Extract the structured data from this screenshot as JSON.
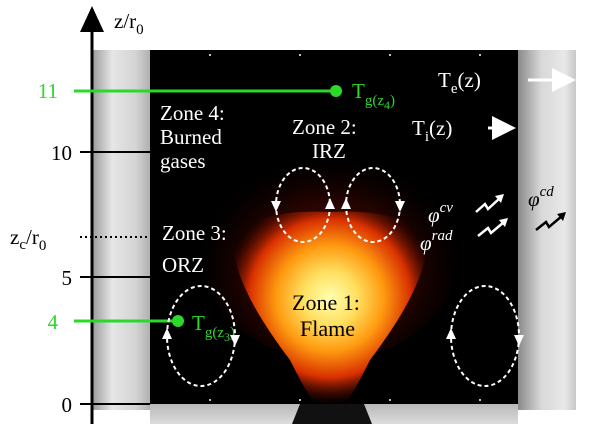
{
  "axis": {
    "label_main": "z/r",
    "label_sub": "0",
    "ticks": [
      {
        "value": "0",
        "color": "#000000"
      },
      {
        "value": "4",
        "color": "#2bd82b"
      },
      {
        "value": "5",
        "color": "#000000"
      },
      {
        "value": "10",
        "color": "#000000"
      },
      {
        "value": "11",
        "color": "#2bd82b"
      }
    ],
    "zc_main": "z",
    "zc_sub": "c",
    "zc_rest": "/r",
    "zc_sub2": "0"
  },
  "zones": {
    "zone1": {
      "line1": "Zone 1:",
      "line2": "Flame"
    },
    "zone2": {
      "line1": "Zone 2:",
      "line2": "IRZ"
    },
    "zone3": {
      "line1": "Zone 3:",
      "line2": "ORZ"
    },
    "zone4": {
      "line1": "Zone 4:",
      "line2": "Burned",
      "line3": "gases"
    }
  },
  "temperatures": {
    "tg4": {
      "main": "T",
      "sub": "g(z",
      "sub2": "4",
      "tail": ")"
    },
    "tg3": {
      "main": "T",
      "sub": "g(z",
      "sub2": "3",
      "tail": ")"
    },
    "te": {
      "main": "T",
      "sub": "e",
      "rest": "(z)"
    },
    "ti": {
      "main": "T",
      "sub": "i",
      "rest": "(z)"
    }
  },
  "fluxes": {
    "cv": {
      "main": "φ",
      "sup": "cv"
    },
    "rad": {
      "main": "φ",
      "sup": "rad"
    },
    "cd": {
      "main": "φ",
      "sup": "cd"
    }
  },
  "colors": {
    "highlight": "#2bd82b",
    "chamber": "#000000",
    "flame_core": "#ffffa0",
    "flame_edge": "#c01000"
  }
}
